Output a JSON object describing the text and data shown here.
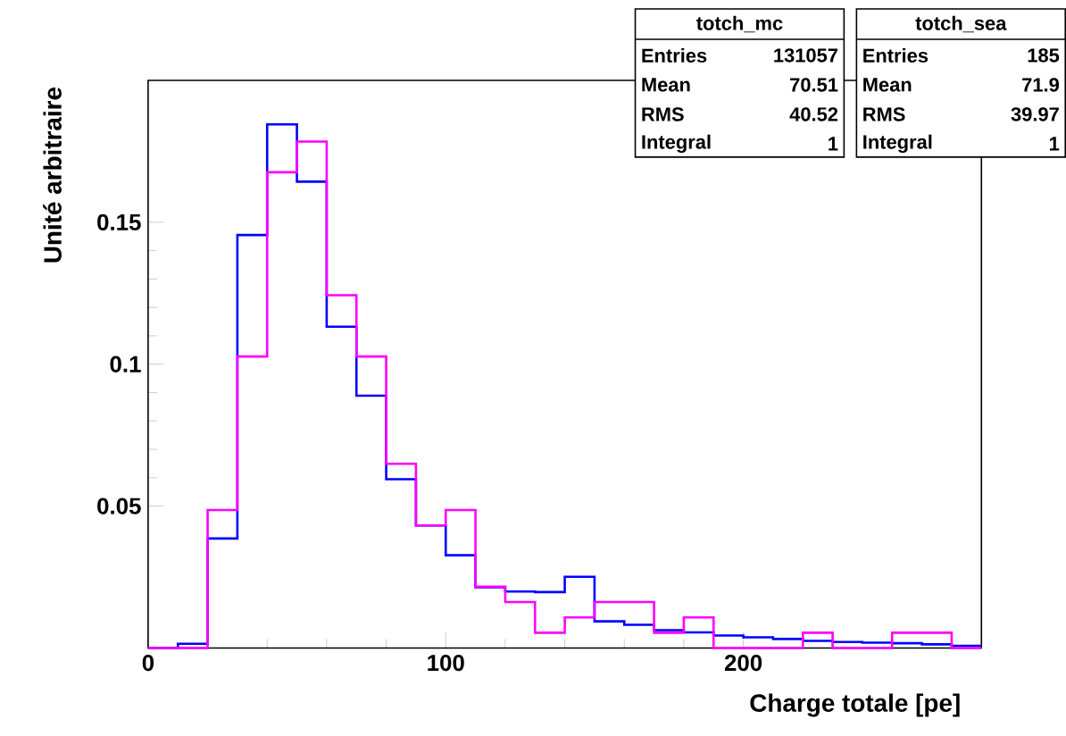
{
  "chart_data": {
    "type": "histogram",
    "xlabel": "Charge totale [pe]",
    "ylabel": "Unité arbitraire",
    "bins": [
      0,
      10,
      20,
      30,
      40,
      50,
      60,
      70,
      80,
      90,
      100,
      110,
      120,
      130,
      140,
      150,
      160,
      170,
      180,
      190,
      200,
      210,
      220,
      230,
      240,
      250,
      260,
      270,
      280
    ],
    "series": [
      {
        "color": "#0000ff",
        "values": [
          0,
          0.0015,
          0.0386,
          0.1455,
          0.1845,
          0.1643,
          0.1132,
          0.0889,
          0.0595,
          0.0432,
          0.0327,
          0.0214,
          0.0199,
          0.0197,
          0.0251,
          0.0094,
          0.0082,
          0.0063,
          0.0055,
          0.0044,
          0.0038,
          0.0032,
          0.0025,
          0.0021,
          0.0019,
          0.0017,
          0.0013,
          0.0008
        ]
      },
      {
        "color": "#ff00ff",
        "values": [
          0,
          0,
          0.0486,
          0.1027,
          0.1676,
          0.1784,
          0.1243,
          0.1027,
          0.0649,
          0.0432,
          0.0486,
          0.0216,
          0.0162,
          0.0054,
          0.0108,
          0.0162,
          0.0162,
          0.0054,
          0.0108,
          0,
          0,
          0,
          0.0054,
          0,
          0,
          0.0054,
          0.0054,
          0
        ]
      }
    ],
    "xlim": [
      0,
      280
    ],
    "ylim": [
      0,
      0.2
    ],
    "xticks": [
      0,
      100,
      200
    ],
    "yticks": [
      0.05,
      0.1,
      0.15
    ],
    "annotations": [
      "totch_mc",
      "Entries",
      "131057",
      "Mean",
      "70.51",
      "RMS",
      "40.52",
      "Integral",
      "1",
      "totch_sea",
      "Entries",
      "185",
      "Mean",
      "71.9",
      "RMS",
      "39.97",
      "Integral",
      "1"
    ]
  }
}
